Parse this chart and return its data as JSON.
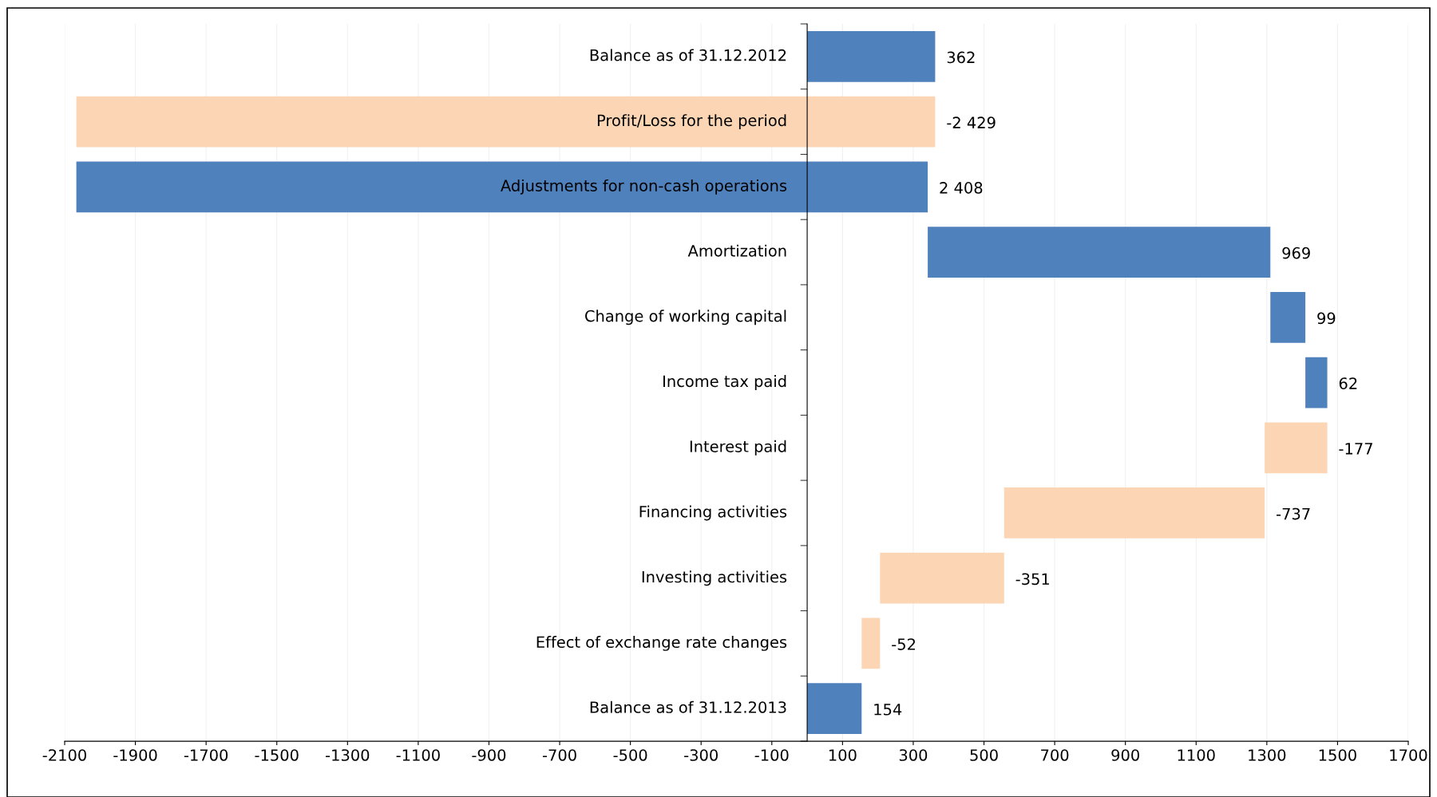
{
  "chart_data": {
    "type": "bar",
    "orientation": "horizontal",
    "categories": [
      "Balance as of 31.12.2012",
      "Profit/Loss for the period",
      "Adjustments for non-cash operations",
      "Amortization",
      "Change of working capital",
      "Income tax paid",
      "Interest paid",
      "Financing activities",
      "Investing activities",
      "Effect of exchange rate changes",
      "Balance as of 31.12.2013"
    ],
    "values": [
      362,
      -2429,
      2408,
      969,
      99,
      62,
      -177,
      -737,
      -351,
      -52,
      154
    ],
    "base": [
      0,
      362,
      -2067,
      341,
      1310,
      1409,
      1471,
      1294,
      557,
      206,
      0
    ],
    "colors": [
      "#4f81bd",
      "#fcd5b4",
      "#4f81bd",
      "#4f81bd",
      "#4f81bd",
      "#4f81bd",
      "#fcd5b4",
      "#fcd5b4",
      "#fcd5b4",
      "#fcd5b4",
      "#4f81bd"
    ],
    "value_labels": [
      "362",
      "-2 429",
      "2 408",
      "969",
      "99",
      "62",
      "-177",
      "-737",
      "-351",
      "-52",
      "154"
    ],
    "xlim": [
      -2100,
      1700
    ],
    "xticks": [
      -2100,
      -1900,
      -1700,
      -1500,
      -1300,
      -1100,
      -900,
      -700,
      -500,
      -300,
      -100,
      100,
      300,
      500,
      700,
      900,
      1100,
      1300,
      1500,
      1700
    ],
    "grid": "x",
    "legend": false
  }
}
